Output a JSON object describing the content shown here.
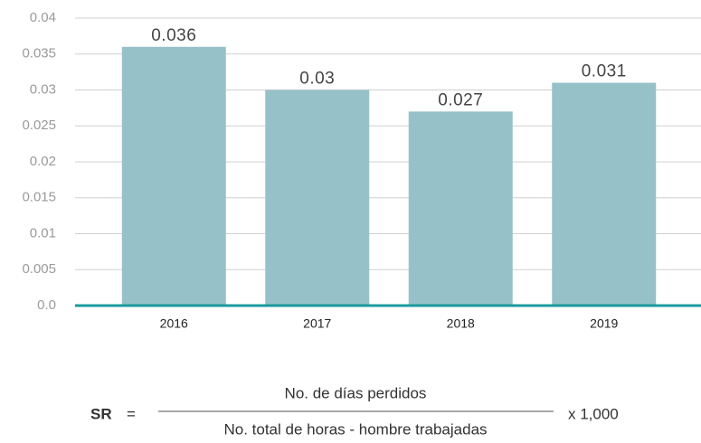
{
  "chart_data": {
    "type": "bar",
    "categories": [
      "2016",
      "2017",
      "2018",
      "2019"
    ],
    "values": [
      0.036,
      0.03,
      0.027,
      0.031
    ],
    "color": "#97c1c9",
    "ylim": [
      0,
      0.04
    ],
    "yticks": [
      {
        "value": 0,
        "label": "0.0"
      },
      0.005,
      0.01,
      0.015,
      0.02,
      0.025,
      0.03,
      0.035,
      0.04
    ],
    "grid": true
  },
  "formula": {
    "lhs": "SR",
    "equals": "=",
    "numerator": "No. de días perdidos",
    "denominator": "No. total de horas - hombre trabajadas",
    "multiplier": "x 1,000"
  }
}
